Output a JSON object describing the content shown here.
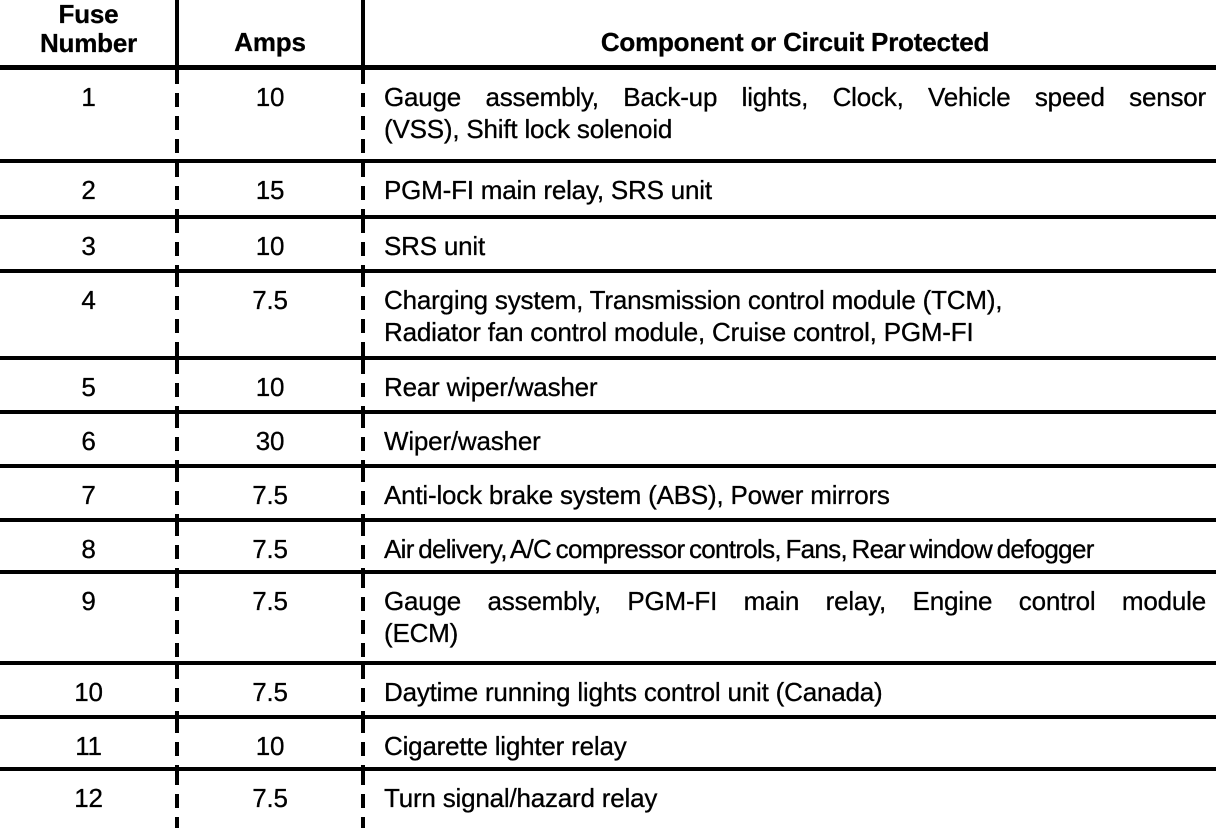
{
  "table": {
    "headers": {
      "fuse_number": "Fuse\nNumber",
      "amps": "Amps",
      "component": "Component or Circuit Protected"
    },
    "rows": [
      {
        "fuse": "1",
        "amps": "10",
        "lines": [
          "Gauge assembly, Back-up lights, Clock, Vehicle speed sensor",
          "(VSS), Shift lock solenoid"
        ]
      },
      {
        "fuse": "2",
        "amps": "15",
        "lines": [
          "PGM-FI main relay, SRS unit"
        ]
      },
      {
        "fuse": "3",
        "amps": "10",
        "lines": [
          "SRS unit"
        ]
      },
      {
        "fuse": "4",
        "amps": "7.5",
        "lines": [
          "Charging system, Transmission control module (TCM),",
          "Radiator fan control module, Cruise control, PGM-FI"
        ]
      },
      {
        "fuse": "5",
        "amps": "10",
        "lines": [
          "Rear wiper/washer"
        ]
      },
      {
        "fuse": "6",
        "amps": "30",
        "lines": [
          "Wiper/washer"
        ]
      },
      {
        "fuse": "7",
        "amps": "7.5",
        "lines": [
          "Anti-lock brake system (ABS), Power mirrors"
        ]
      },
      {
        "fuse": "8",
        "amps": "7.5",
        "lines": [
          "Air delivery, A/C compressor controls, Fans, Rear window defogger"
        ]
      },
      {
        "fuse": "9",
        "amps": "7.5",
        "lines": [
          "Gauge assembly, PGM-FI main relay, Engine control module",
          "(ECM)"
        ]
      },
      {
        "fuse": "10",
        "amps": "7.5",
        "lines": [
          "Daytime running lights control unit (Canada)"
        ]
      },
      {
        "fuse": "11",
        "amps": "10",
        "lines": [
          "Cigarette lighter relay"
        ]
      },
      {
        "fuse": "12",
        "amps": "7.5",
        "lines": [
          "Turn signal/hazard relay"
        ]
      }
    ]
  }
}
